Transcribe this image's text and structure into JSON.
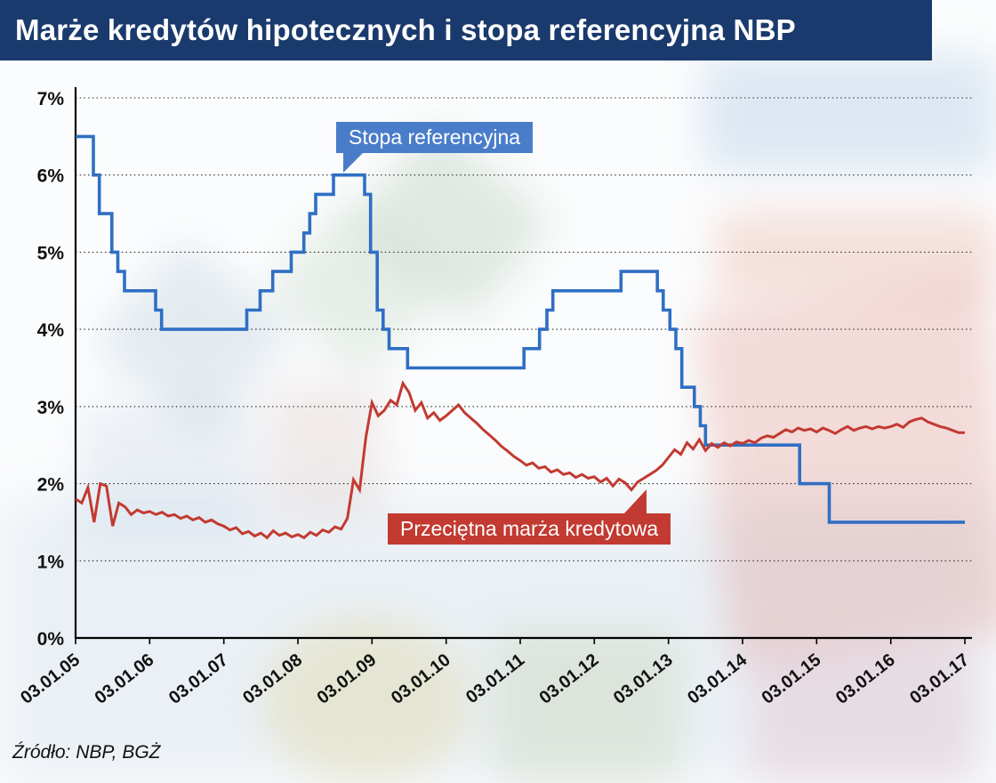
{
  "header": {
    "title": "Marże kredytów hipotecznych i stopa referencyjna NBP"
  },
  "footer": {
    "source": "Źródło: NBP, BGŻ"
  },
  "callouts": {
    "reference_rate": "Stopa referencyjna",
    "credit_margin": "Przeciętna marża kredytowa"
  },
  "colors": {
    "title_bar": "#1a3a6d",
    "reference_rate_line": "#2f6fc4",
    "credit_margin_line": "#c23a31",
    "reference_rate_label_bg": "#4a7dc9",
    "credit_margin_label_bg": "#c23a31",
    "grid": "#2a2a2a",
    "axis": "#000000"
  },
  "chart_data": {
    "type": "line",
    "title": "Marże kredytów hipotecznych i stopa referencyjna NBP",
    "xlabel": "",
    "ylabel": "",
    "ylim": [
      0,
      7
    ],
    "xlim": [
      2005,
      2017
    ],
    "grid": "horizontal-dotted",
    "legend_position": "inline-callouts",
    "ytick_labels": [
      "0%",
      "1%",
      "2%",
      "3%",
      "4%",
      "5%",
      "6%",
      "7%"
    ],
    "xtick_years": [
      2005,
      2006,
      2007,
      2008,
      2009,
      2010,
      2011,
      2012,
      2013,
      2014,
      2015,
      2016,
      2017
    ],
    "xtick_labels": [
      "03.01.05",
      "03.01.06",
      "03.01.07",
      "03.01.08",
      "03.01.09",
      "03.01.10",
      "03.01.11",
      "03.01.12",
      "03.01.13",
      "03.01.14",
      "03.01.15",
      "03.01.16",
      "03.01.17"
    ],
    "series": [
      {
        "name": "Stopa referencyjna",
        "color": "#2f6fc4",
        "style": "step",
        "width": 3.6,
        "points": [
          [
            2005.0,
            6.5
          ],
          [
            2005.24,
            6.0
          ],
          [
            2005.32,
            5.5
          ],
          [
            2005.49,
            5.0
          ],
          [
            2005.57,
            4.75
          ],
          [
            2005.66,
            4.5
          ],
          [
            2006.08,
            4.25
          ],
          [
            2006.16,
            4.0
          ],
          [
            2007.31,
            4.25
          ],
          [
            2007.49,
            4.5
          ],
          [
            2007.66,
            4.75
          ],
          [
            2007.91,
            5.0
          ],
          [
            2008.08,
            5.25
          ],
          [
            2008.16,
            5.5
          ],
          [
            2008.24,
            5.75
          ],
          [
            2008.48,
            6.0
          ],
          [
            2008.9,
            5.75
          ],
          [
            2008.98,
            5.0
          ],
          [
            2009.07,
            4.25
          ],
          [
            2009.15,
            4.0
          ],
          [
            2009.23,
            3.75
          ],
          [
            2009.48,
            3.5
          ],
          [
            2011.05,
            3.75
          ],
          [
            2011.26,
            4.0
          ],
          [
            2011.36,
            4.25
          ],
          [
            2011.44,
            4.5
          ],
          [
            2012.36,
            4.75
          ],
          [
            2012.85,
            4.5
          ],
          [
            2012.93,
            4.25
          ],
          [
            2013.02,
            4.0
          ],
          [
            2013.1,
            3.75
          ],
          [
            2013.18,
            3.25
          ],
          [
            2013.35,
            3.0
          ],
          [
            2013.43,
            2.75
          ],
          [
            2013.5,
            2.5
          ],
          [
            2014.77,
            2.0
          ],
          [
            2015.17,
            1.5
          ],
          [
            2017.0,
            1.5
          ]
        ]
      },
      {
        "name": "Przeciętna marża kredytowa",
        "color": "#c23a31",
        "style": "line",
        "width": 3,
        "x_start": 2005.0,
        "x_step": 0.0833333,
        "values": [
          1.8,
          1.75,
          1.95,
          1.5,
          2.0,
          1.97,
          1.45,
          1.75,
          1.7,
          1.6,
          1.66,
          1.62,
          1.64,
          1.6,
          1.63,
          1.58,
          1.6,
          1.55,
          1.58,
          1.53,
          1.56,
          1.5,
          1.53,
          1.48,
          1.45,
          1.4,
          1.43,
          1.35,
          1.38,
          1.32,
          1.36,
          1.3,
          1.39,
          1.33,
          1.36,
          1.31,
          1.34,
          1.3,
          1.37,
          1.33,
          1.4,
          1.37,
          1.44,
          1.41,
          1.55,
          2.05,
          1.92,
          2.6,
          3.05,
          2.88,
          2.95,
          3.08,
          3.02,
          3.3,
          3.18,
          2.95,
          3.05,
          2.85,
          2.92,
          2.82,
          2.88,
          2.95,
          3.02,
          2.92,
          2.85,
          2.78,
          2.7,
          2.63,
          2.56,
          2.48,
          2.42,
          2.35,
          2.3,
          2.24,
          2.27,
          2.2,
          2.22,
          2.15,
          2.18,
          2.12,
          2.14,
          2.08,
          2.12,
          2.07,
          2.09,
          2.02,
          2.07,
          1.97,
          2.06,
          2.01,
          1.92,
          2.02,
          2.07,
          2.12,
          2.17,
          2.24,
          2.34,
          2.44,
          2.38,
          2.53,
          2.45,
          2.57,
          2.43,
          2.52,
          2.47,
          2.53,
          2.49,
          2.54,
          2.52,
          2.56,
          2.53,
          2.59,
          2.62,
          2.6,
          2.65,
          2.7,
          2.67,
          2.72,
          2.69,
          2.71,
          2.67,
          2.72,
          2.69,
          2.65,
          2.7,
          2.74,
          2.69,
          2.72,
          2.74,
          2.71,
          2.74,
          2.72,
          2.74,
          2.77,
          2.73,
          2.8,
          2.83,
          2.85,
          2.8,
          2.77,
          2.74,
          2.72,
          2.69,
          2.66,
          2.66
        ]
      }
    ]
  }
}
